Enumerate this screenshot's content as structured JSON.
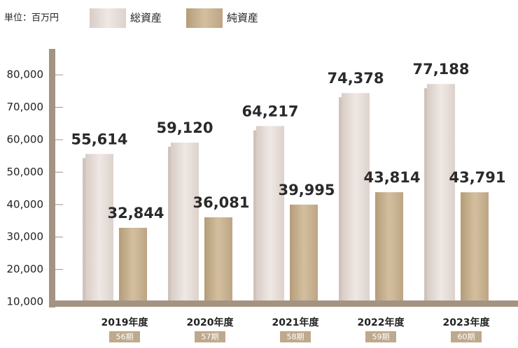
{
  "chart_data": {
    "type": "bar",
    "unit_label": "単位：百万円",
    "categories": [
      "2019年度",
      "2020年度",
      "2021年度",
      "2022年度",
      "2023年度"
    ],
    "periods": [
      "56期",
      "57期",
      "58期",
      "59期",
      "60期"
    ],
    "series": [
      {
        "name": "総資産",
        "color": "#e6ddd8",
        "values": [
          55614,
          59120,
          64217,
          74378,
          77188
        ],
        "value_labels": [
          "55,614",
          "59,120",
          "64,217",
          "74,378",
          "77,188"
        ]
      },
      {
        "name": "純資産",
        "color": "#c5ae8d",
        "values": [
          32844,
          36081,
          39995,
          43814,
          43791
        ],
        "value_labels": [
          "32,844",
          "36,081",
          "39,995",
          "43,814",
          "43,791"
        ]
      }
    ],
    "ylim": [
      10000,
      88000
    ],
    "yticks": [
      {
        "value": 10000,
        "label": "10,000"
      },
      {
        "value": 20000,
        "label": "20,000"
      },
      {
        "value": 30000,
        "label": "30,000"
      },
      {
        "value": 40000,
        "label": "40,000"
      },
      {
        "value": 50000,
        "label": "50,000"
      },
      {
        "value": 60000,
        "label": "60,000"
      },
      {
        "value": 70000,
        "label": "70,000"
      },
      {
        "value": 80000,
        "label": "80,000"
      }
    ],
    "axis_color": "#a49382"
  }
}
